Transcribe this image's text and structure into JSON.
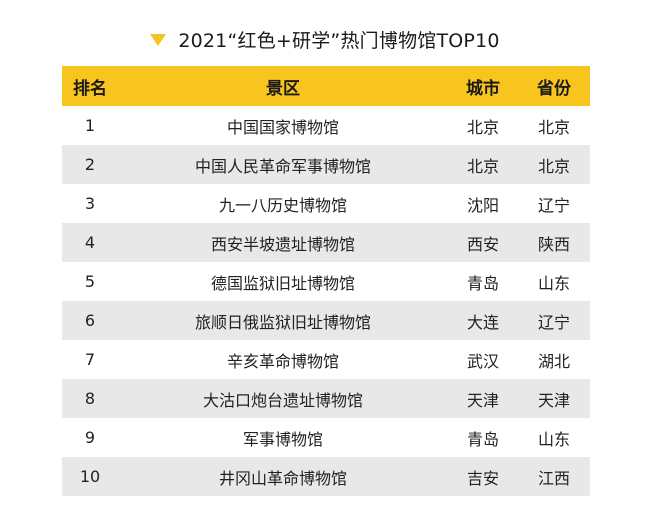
{
  "title": "2021“红色+研学”热门博物馆TOP10",
  "colors": {
    "accent": "#f8c51f",
    "stripe": "#e8e8e8"
  },
  "table": {
    "headers": {
      "rank": "排名",
      "name": "景区",
      "city": "城市",
      "province": "省份"
    },
    "rows": [
      {
        "rank": "1",
        "name": "中国国家博物馆",
        "city": "北京",
        "province": "北京"
      },
      {
        "rank": "2",
        "name": "中国人民革命军事博物馆",
        "city": "北京",
        "province": "北京"
      },
      {
        "rank": "3",
        "name": "九一八历史博物馆",
        "city": "沈阳",
        "province": "辽宁"
      },
      {
        "rank": "4",
        "name": "西安半坡遗址博物馆",
        "city": "西安",
        "province": "陕西"
      },
      {
        "rank": "5",
        "name": "德国监狱旧址博物馆",
        "city": "青岛",
        "province": "山东"
      },
      {
        "rank": "6",
        "name": "旅顺日俄监狱旧址博物馆",
        "city": "大连",
        "province": "辽宁"
      },
      {
        "rank": "7",
        "name": "辛亥革命博物馆",
        "city": "武汉",
        "province": "湖北"
      },
      {
        "rank": "8",
        "name": "大沽口炮台遗址博物馆",
        "city": "天津",
        "province": "天津"
      },
      {
        "rank": "9",
        "name": "军事博物馆",
        "city": "青岛",
        "province": "山东"
      },
      {
        "rank": "10",
        "name": "井冈山革命博物馆",
        "city": "吉安",
        "province": "江西"
      }
    ]
  }
}
